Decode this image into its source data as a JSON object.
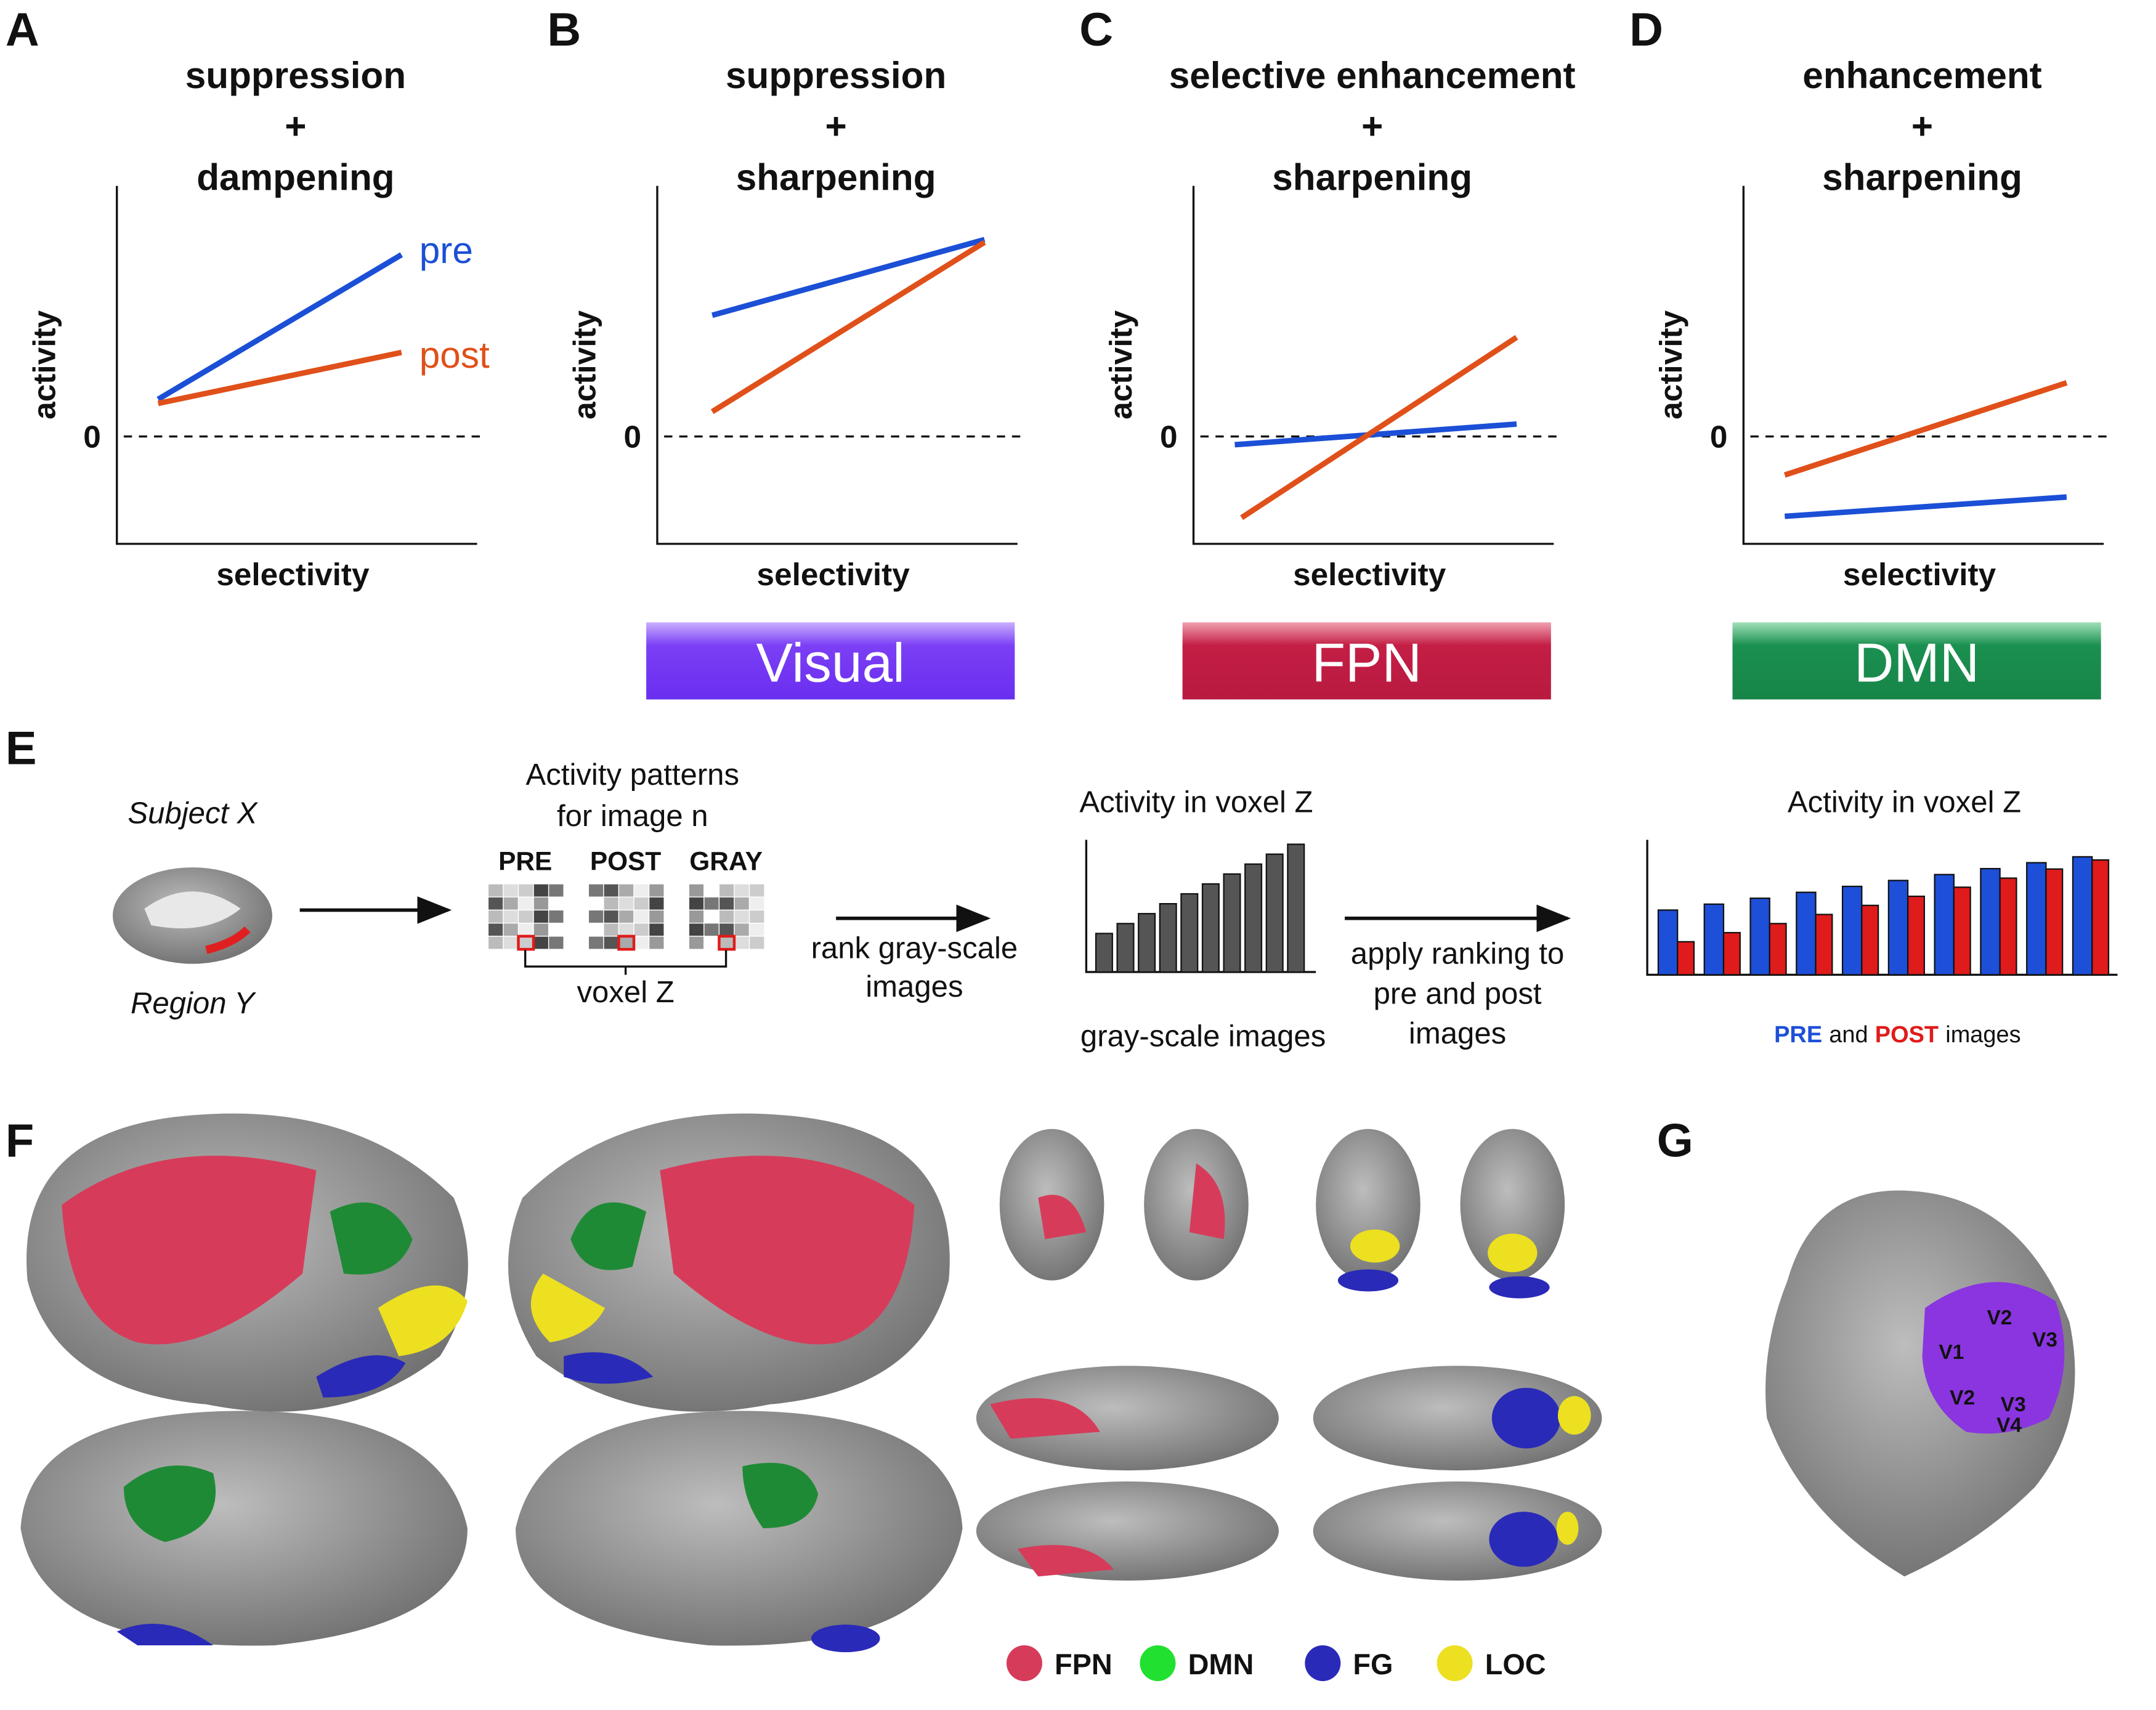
{
  "panels": [
    {
      "letter": "A",
      "title": [
        "suppression",
        "+",
        "dampening"
      ],
      "y_label": "activity",
      "zero": "0",
      "x_label": "selectivity",
      "legend": [
        "pre",
        "post"
      ]
    },
    {
      "letter": "B",
      "title": [
        "suppression",
        "+",
        "sharpening"
      ],
      "y_label": "activity",
      "zero": "0",
      "x_label": "selectivity",
      "network": "Visual"
    },
    {
      "letter": "C",
      "title": [
        "selective enhancement",
        "+",
        "sharpening"
      ],
      "y_label": "activity",
      "zero": "0",
      "x_label": "selectivity",
      "network": "FPN"
    },
    {
      "letter": "D",
      "title": [
        "enhancement",
        "+",
        "sharpening"
      ],
      "y_label": "activity",
      "zero": "0",
      "x_label": "selectivity",
      "network": "DMN"
    }
  ],
  "E": {
    "letter": "E",
    "subject": "Subject X",
    "region": "Region Y",
    "patterns_title": [
      "Activity patterns",
      "for image n"
    ],
    "conditions": [
      "PRE",
      "POST",
      "GRAY"
    ],
    "voxel": "voxel Z",
    "step1": [
      "rank gray-scale",
      "images"
    ],
    "chart1_title": "Activity in voxel Z",
    "chart1_x": "gray-scale images",
    "step2": [
      "apply ranking to",
      "pre and post",
      "images"
    ],
    "chart2_title": "Activity in voxel Z",
    "chart2_x": [
      "PRE",
      "and",
      "POST",
      "images"
    ]
  },
  "F": {
    "letter": "F",
    "legend": [
      "FPN",
      "DMN",
      "FG",
      "LOC"
    ]
  },
  "G": {
    "letter": "G",
    "areas": [
      "V2",
      "V1",
      "V3",
      "V2",
      "V3",
      "V4"
    ]
  }
}
